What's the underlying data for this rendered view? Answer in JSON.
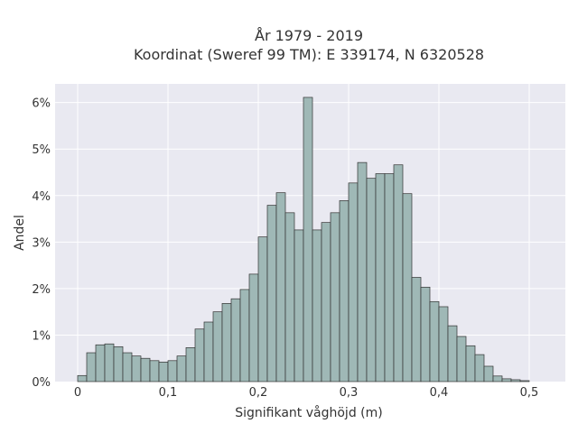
{
  "chart_data": {
    "type": "bar",
    "title_line1": "År 1979 - 2019",
    "title_line2": "Koordinat (Sweref 99 TM): E 339174, N 6320528",
    "xlabel": "Signifikant våghöjd (m)",
    "ylabel": "Andel",
    "xlim": [
      -0.025,
      0.54
    ],
    "ylim": [
      0,
      0.064
    ],
    "bin_width": 0.01,
    "x_ticks": [
      0,
      0.1,
      0.2,
      0.3,
      0.4,
      0.5
    ],
    "x_tick_labels": [
      "0",
      "0,1",
      "0,2",
      "0,3",
      "0,4",
      "0,5"
    ],
    "y_ticks": [
      0,
      0.01,
      0.02,
      0.03,
      0.04,
      0.05,
      0.06
    ],
    "y_tick_labels": [
      "0%",
      "1%",
      "2%",
      "3%",
      "4%",
      "5%",
      "6%"
    ],
    "grid": true,
    "bar_color": "#9fb8b6",
    "bar_edge_color": "#333333",
    "background_color": "#e9e9f1",
    "bins_start": [
      0,
      0.01,
      0.02,
      0.03,
      0.04,
      0.05,
      0.06,
      0.07,
      0.08,
      0.09,
      0.1,
      0.11,
      0.12,
      0.13,
      0.14,
      0.15,
      0.16,
      0.17,
      0.18,
      0.19,
      0.2,
      0.21,
      0.22,
      0.23,
      0.24,
      0.25,
      0.26,
      0.27,
      0.28,
      0.29,
      0.3,
      0.31,
      0.32,
      0.33,
      0.34,
      0.35,
      0.36,
      0.37,
      0.38,
      0.39,
      0.4,
      0.41,
      0.42,
      0.43,
      0.44,
      0.45,
      0.46,
      0.47,
      0.48,
      0.49,
      0.5,
      0.51
    ],
    "values": [
      0.0013,
      0.0062,
      0.0079,
      0.0081,
      0.0075,
      0.0062,
      0.0055,
      0.005,
      0.0045,
      0.0042,
      0.0045,
      0.0055,
      0.0073,
      0.0113,
      0.0128,
      0.015,
      0.0168,
      0.0178,
      0.0198,
      0.0231,
      0.0311,
      0.0379,
      0.0406,
      0.0363,
      0.0326,
      0.0611,
      0.0326,
      0.0342,
      0.0363,
      0.0389,
      0.0427,
      0.0471,
      0.0437,
      0.0447,
      0.0447,
      0.0466,
      0.0404,
      0.0224,
      0.0203,
      0.0172,
      0.0161,
      0.012,
      0.0097,
      0.0077,
      0.0058,
      0.0033,
      0.0012,
      0.0006,
      0.0004,
      0.0002,
      0,
      0
    ]
  }
}
